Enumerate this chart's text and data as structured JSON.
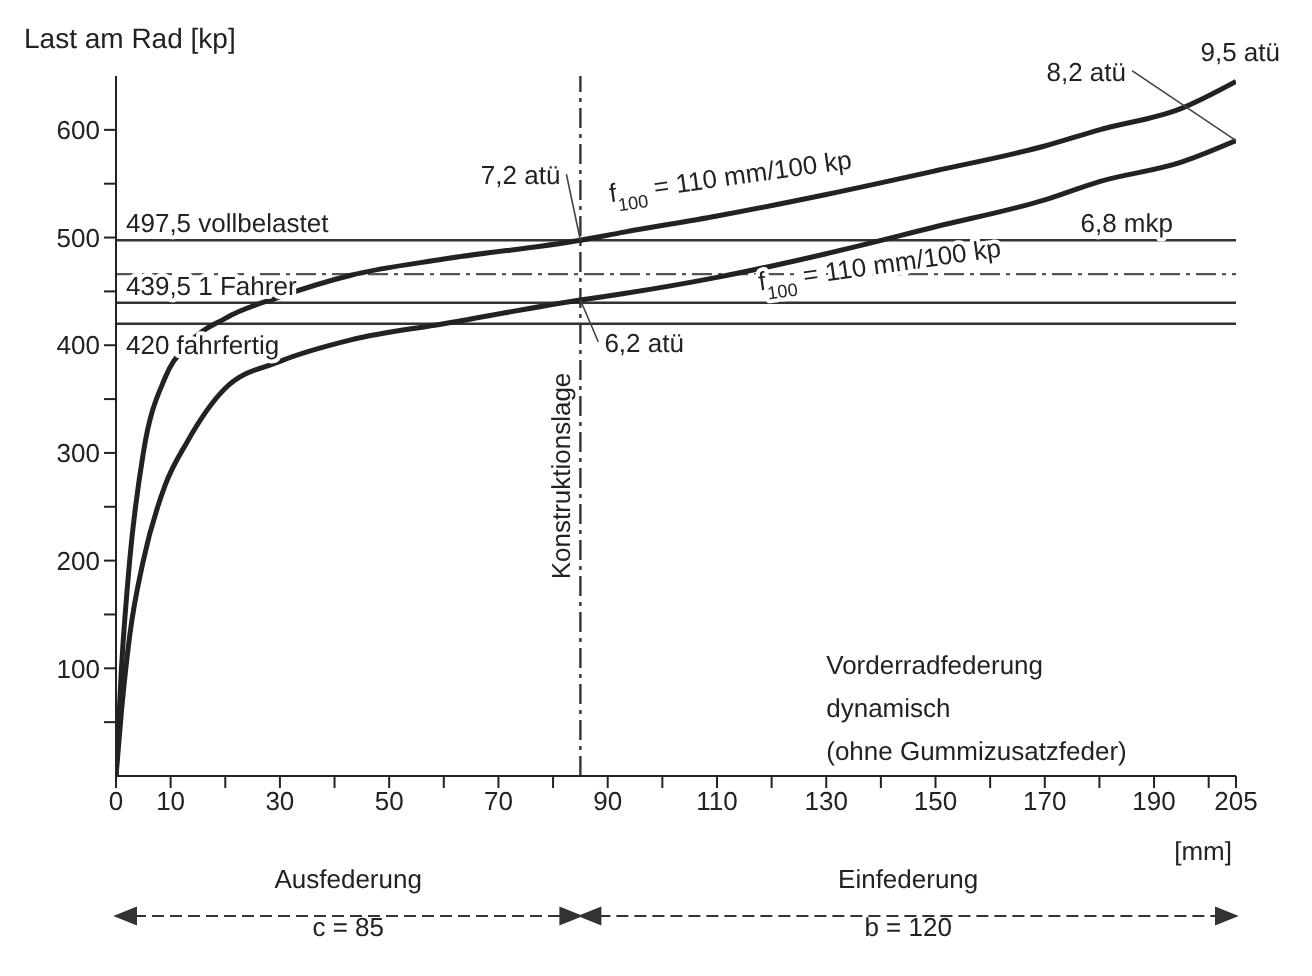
{
  "chart_data": {
    "type": "line",
    "ylabel": "Last am Rad [kp]",
    "xlabel": "[mm]",
    "x": [
      0,
      1,
      2.5,
      5,
      9,
      13,
      20,
      30,
      43,
      60,
      85,
      93,
      110,
      130,
      150,
      170,
      180,
      195,
      205
    ],
    "series": [
      {
        "color": "#222222",
        "values": [
          0,
          100,
          200,
          300,
          370,
          400,
          425,
          445,
          465,
          480,
          497.5,
          505,
          520,
          540,
          562,
          585,
          600,
          620,
          645
        ]
      },
      {
        "color": "#222222",
        "values": [
          0,
          60,
          130,
          200,
          270,
          310,
          360,
          385,
          405,
          420,
          442,
          448,
          463,
          485,
          510,
          535,
          552,
          570,
          590
        ]
      }
    ],
    "xlim": [
      0,
      205
    ],
    "ylim": [
      0,
      650
    ],
    "xticks": [
      0,
      10,
      {
        "value": 20,
        "label": null
      },
      30,
      {
        "value": 40,
        "label": null
      },
      50,
      {
        "value": 60,
        "label": null
      },
      70,
      {
        "value": 80,
        "label": null
      },
      90,
      {
        "value": 100,
        "label": null
      },
      110,
      {
        "value": 120,
        "label": null
      },
      130,
      {
        "value": 140,
        "label": null
      },
      150,
      {
        "value": 160,
        "label": null
      },
      170,
      {
        "value": 180,
        "label": null
      },
      190,
      {
        "value": 200,
        "label": null
      },
      205
    ],
    "yticks": [
      {
        "value": 50,
        "label": null
      },
      100,
      {
        "value": 150,
        "label": null
      },
      200,
      {
        "value": 250,
        "label": null
      },
      300,
      {
        "value": 350,
        "label": null
      },
      400,
      {
        "value": 450,
        "label": null
      },
      500,
      {
        "value": 550,
        "label": null
      },
      600
    ],
    "marker": "none",
    "ref_lines": [
      {
        "axis": "y",
        "value": 497.5,
        "label": "497,5 vollbelastet",
        "color": "#333333",
        "line_style": "solid"
      },
      {
        "axis": "y",
        "value": 439.5,
        "label": "439,5 1 Fahrer",
        "color": "#333333",
        "line_style": "solid"
      },
      {
        "axis": "y",
        "value": 420,
        "label": "420 fahrfertig",
        "color": "#333333",
        "line_style": "solid"
      },
      {
        "axis": "y",
        "value": 466,
        "color": "#555555",
        "line_style": "dashed"
      },
      {
        "axis": "x",
        "value": 85,
        "label": "Konstruktionslage",
        "color": "#333333",
        "line_style": "dashed"
      }
    ],
    "annotations": [
      {
        "text": "7,2 atü",
        "x": 85,
        "y": 497.5
      },
      {
        "text": "6,2 atü",
        "x": 85,
        "y": 442
      },
      {
        "text": "9,5 atü",
        "x": 205,
        "y": 645
      },
      {
        "text": "8,2 atü",
        "x": 205,
        "y": 590
      },
      {
        "text": "f$_{100}$ = 110 mm/100 kp",
        "x": 120,
        "y": 530
      },
      {
        "text": "f$_{100}$ = 110 mm/100 kp",
        "x": 140,
        "y": 500
      },
      "6,8 mkp",
      "Vorderradfederung",
      "dynamisch",
      "(ohne Gummizusatzfeder)",
      "Ausfederung",
      "Einfederung",
      "c = 85",
      "b = 120"
    ]
  }
}
